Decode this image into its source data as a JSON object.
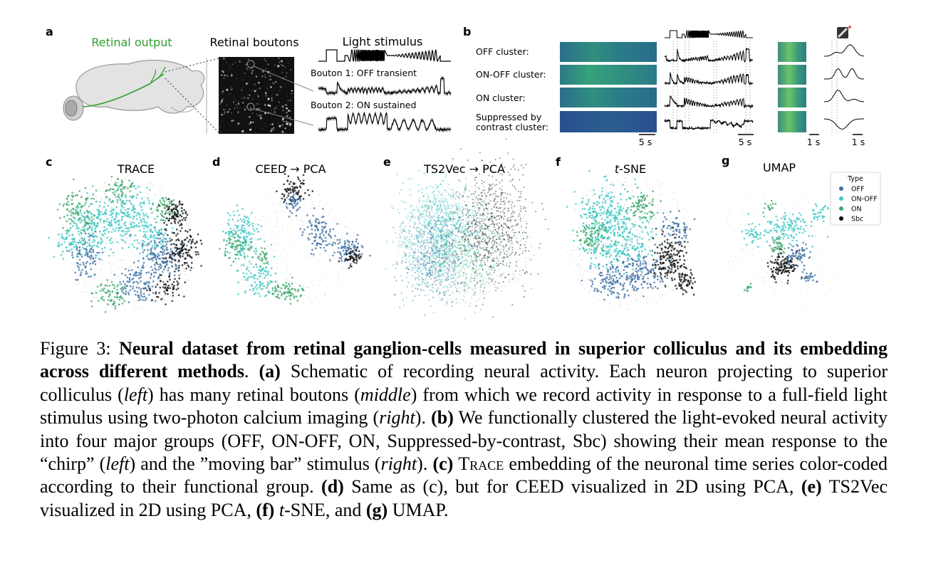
{
  "panel_a": {
    "label": "a",
    "retinal_output": "Retinal output",
    "retinal_boutons": "Retinal boutons",
    "light_stimulus": "Light stimulus",
    "bouton1": "Bouton 1: OFF transient",
    "bouton2": "Bouton 2: ON sustained"
  },
  "panel_b": {
    "label": "b",
    "clusters": [
      "OFF cluster:",
      "ON-OFF cluster:",
      "ON cluster:",
      "Suppressed by",
      "contrast cluster:"
    ],
    "scale_labels": [
      "5 s",
      "5 s",
      "1 s",
      "1 s"
    ]
  },
  "embeddings": [
    {
      "label": "c",
      "title": "TRACE"
    },
    {
      "label": "d",
      "title": "CEED → PCA"
    },
    {
      "label": "e",
      "title": "TS2Vec → PCA"
    },
    {
      "label": "f",
      "title_italic": "t",
      "title_rest": "-SNE"
    },
    {
      "label": "g",
      "title": "UMAP"
    }
  ],
  "legend": {
    "title": "Type",
    "items": [
      {
        "label": "OFF",
        "color": "#3f6fa3"
      },
      {
        "label": "ON-OFF",
        "color": "#3fc9c4"
      },
      {
        "label": "ON",
        "color": "#3fa86a"
      },
      {
        "label": "Sbc",
        "color": "#000000"
      }
    ]
  },
  "caption": {
    "fig": "Figure 3:",
    "title": "Neural dataset from retinal ganglion-cells measured in superior colliculus and its embedding across different methods",
    "p_a": "(a)",
    "t_a": " Schematic of recording neural activity. Each neuron projecting to superior colliculus (",
    "left1": "left",
    "t_a2": ") has many retinal boutons (",
    "middle": "middle",
    "t_a3": ") from which we record activity in response to a full-field light stimulus using two-photon calcium imaging (",
    "right1": "right",
    "t_a4": "). ",
    "p_b": "(b)",
    "t_b": " We functionally clustered the light-evoked neural activity into four major groups (OFF, ON-OFF, ON, Suppressed-by-contrast, Sbc) showing their mean response to the “chirp” (",
    "left2": "left",
    "t_b2": ") and the ”moving bar” stimulus (",
    "right2": "right",
    "t_b3": "). ",
    "p_c": "(c)",
    "t_c_sc": "Trace",
    "t_c": " embedding of the neuronal time series color-coded according to their functional group. ",
    "p_d": "(d)",
    "t_d": " Same as (c), but for CEED visualized in 2D using PCA, ",
    "p_e": "(e)",
    "t_e": " TS2Vec visualized in 2D using PCA, ",
    "p_f": "(f)",
    "t_f_it": "t",
    "t_f": "-SNE, and ",
    "p_g": "(g)",
    "t_g": " UMAP."
  }
}
